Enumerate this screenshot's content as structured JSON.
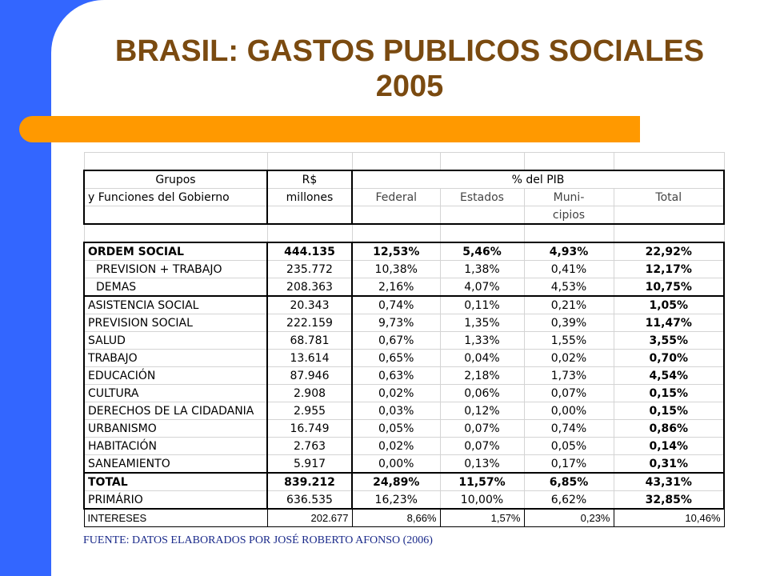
{
  "slide": {
    "title_line1": "BRASIL: GASTOS PUBLICOS SOCIALES",
    "title_line2": "2005",
    "source": "FUENTE: DATOS ELABORADOS POR JOSÉ ROBERTO AFONSO (2006)"
  },
  "header": {
    "grupos": "Grupos",
    "funciones": "y Funciones del Gobierno",
    "currency": "R$",
    "millones": "millones",
    "pib": "% del PIB",
    "federal": "Federal",
    "estados": "Estados",
    "muni": "Muni-",
    "cipios": "cipios",
    "total": "Total"
  },
  "rows": [
    [
      "ORDEM SOCIAL",
      "444.135",
      "12,53%",
      "5,46%",
      "4,93%",
      "22,92%"
    ],
    [
      "PREVISION + TRABAJO",
      "235.772",
      "10,38%",
      "1,38%",
      "0,41%",
      "12,17%"
    ],
    [
      "DEMAS",
      "208.363",
      "2,16%",
      "4,07%",
      "4,53%",
      "10,75%"
    ],
    [
      "ASISTENCIA SOCIAL",
      "20.343",
      "0,74%",
      "0,11%",
      "0,21%",
      "1,05%"
    ],
    [
      "PREVISION SOCIAL",
      "222.159",
      "9,73%",
      "1,35%",
      "0,39%",
      "11,47%"
    ],
    [
      "SALUD",
      "68.781",
      "0,67%",
      "1,33%",
      "1,55%",
      "3,55%"
    ],
    [
      "TRABAJO",
      "13.614",
      "0,65%",
      "0,04%",
      "0,02%",
      "0,70%"
    ],
    [
      "EDUCACIÓN",
      "87.946",
      "0,63%",
      "2,18%",
      "1,73%",
      "4,54%"
    ],
    [
      "CULTURA",
      "2.908",
      "0,02%",
      "0,06%",
      "0,07%",
      "0,15%"
    ],
    [
      "DERECHOS DE LA CIDADANIA",
      "2.955",
      "0,03%",
      "0,12%",
      "0,00%",
      "0,15%"
    ],
    [
      "URBANISMO",
      "16.749",
      "0,05%",
      "0,07%",
      "0,74%",
      "0,86%"
    ],
    [
      "HABITACIÓN",
      "2.763",
      "0,02%",
      "0,07%",
      "0,05%",
      "0,14%"
    ],
    [
      "SANEAMIENTO",
      "5.917",
      "0,00%",
      "0,13%",
      "0,17%",
      "0,31%"
    ],
    [
      "TOTAL",
      "839.212",
      "24,89%",
      "11,57%",
      "6,85%",
      "43,31%"
    ],
    [
      "PRIMÁRIO",
      "636.535",
      "16,23%",
      "10,00%",
      "6,62%",
      "32,85%"
    ],
    [
      "INTERESES",
      "202.677",
      "8,66%",
      "1,57%",
      "0,23%",
      "10,46%"
    ]
  ]
}
